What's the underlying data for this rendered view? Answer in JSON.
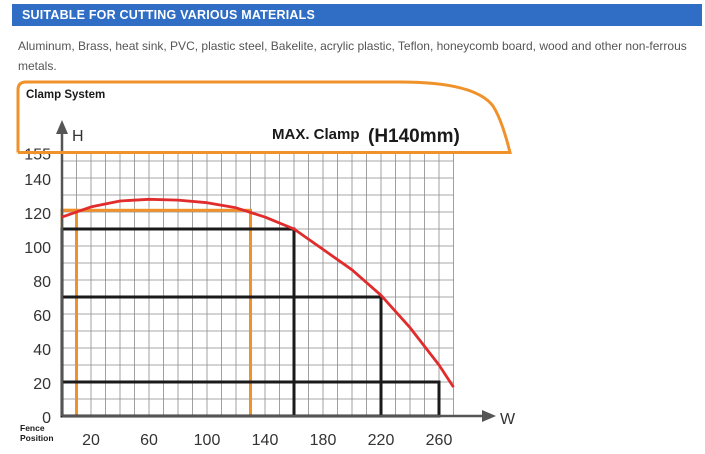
{
  "section": {
    "title": "SUITABLE FOR CUTTING VARIOUS MATERIALS",
    "description": "Aluminum, Brass, heat sink, PVC, plastic steel, Bakelite, acrylic plastic, Teflon, honeycomb board, wood and other non-ferrous metals."
  },
  "chart_data": {
    "type": "line",
    "title": "Clamp System",
    "annotation": "MAX. Clamp",
    "annotation_value": "(H140mm)",
    "xlabel": "W",
    "ylabel": "H",
    "origin_label": "Fence Position",
    "xlim": [
      0,
      270
    ],
    "ylim": [
      0,
      155
    ],
    "x_ticks": [
      20,
      60,
      100,
      140,
      180,
      220,
      260
    ],
    "y_ticks": [
      0,
      20,
      40,
      60,
      80,
      100,
      120,
      140,
      155
    ],
    "grid": true,
    "series": [
      {
        "color": "#e02c2c",
        "x": [
          0,
          20,
          40,
          60,
          80,
          100,
          120,
          140,
          160,
          180,
          200,
          220,
          240,
          260,
          270
        ],
        "y": [
          117,
          123,
          126.5,
          127.5,
          127,
          125.5,
          122.5,
          117,
          110,
          98,
          86,
          71,
          52,
          30,
          17
        ]
      }
    ],
    "overlays": [
      {
        "color": "#f0922b",
        "x": 130,
        "y": 121
      },
      {
        "color": "#f0922b",
        "x": 10,
        "y": 121
      },
      {
        "color": "#1a1a1a",
        "x": 160,
        "y": 110
      },
      {
        "color": "#1a1a1a",
        "x": 220,
        "y": 70
      },
      {
        "color": "#1a1a1a",
        "x": 260,
        "y": 20
      }
    ],
    "colors": {
      "grid": "#8a8a8a",
      "axis": "#555555",
      "capacity_outline": "#f0922b",
      "banner": "#2f6ec4"
    }
  }
}
